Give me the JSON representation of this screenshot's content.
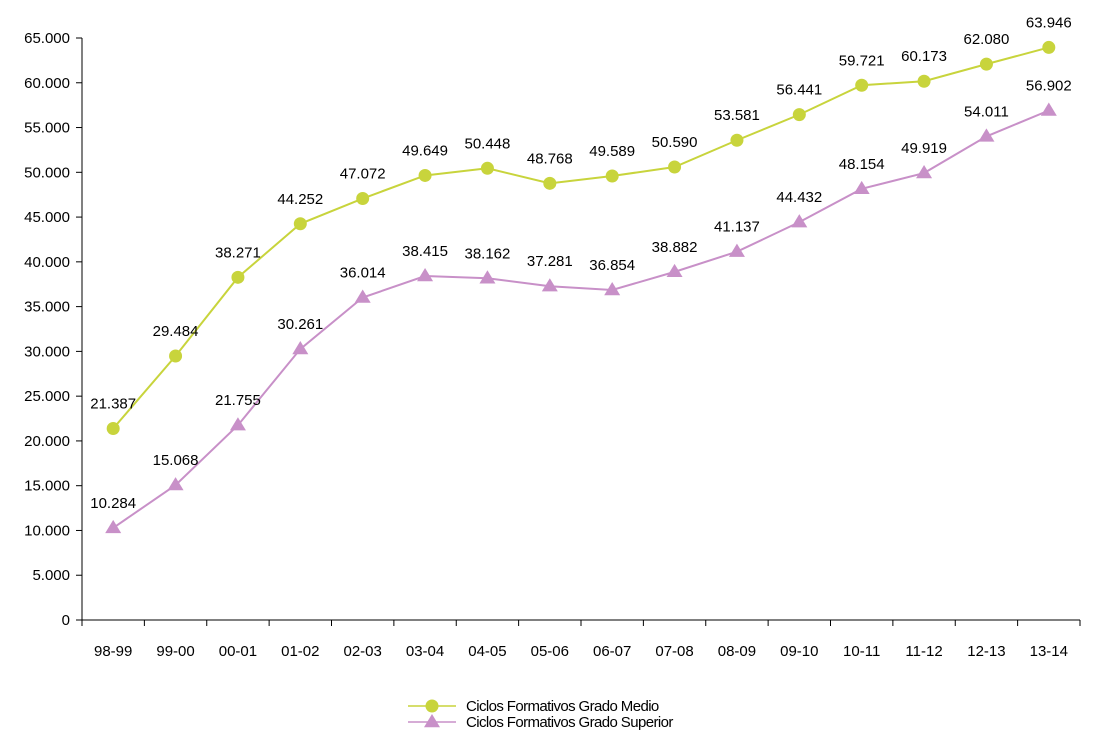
{
  "chart_data": {
    "type": "line",
    "title": "",
    "xlabel": "",
    "ylabel": "",
    "categories": [
      "98-99",
      "99-00",
      "00-01",
      "01-02",
      "02-03",
      "03-04",
      "04-05",
      "05-06",
      "06-07",
      "07-08",
      "08-09",
      "09-10",
      "10-11",
      "11-12",
      "12-13",
      "13-14"
    ],
    "ylim": [
      0,
      65000
    ],
    "yticks": [
      0,
      5000,
      10000,
      15000,
      20000,
      25000,
      30000,
      35000,
      40000,
      45000,
      50000,
      55000,
      60000,
      65000
    ],
    "ytick_labels": [
      "0",
      "5.000",
      "10.000",
      "15.000",
      "20.000",
      "25.000",
      "30.000",
      "35.000",
      "40.000",
      "45.000",
      "50.000",
      "55.000",
      "60.000",
      "65.000"
    ],
    "grid": false,
    "legend_position": "bottom",
    "series": [
      {
        "name": "Ciclos Formativos Grado Medio",
        "marker": "circle",
        "color": "#c8d43c",
        "values": [
          21387,
          29484,
          38271,
          44252,
          47072,
          49649,
          50448,
          48768,
          49589,
          50590,
          53581,
          56441,
          59721,
          60173,
          62080,
          63946
        ],
        "labels": [
          "21.387",
          "29.484",
          "38.271",
          "44.252",
          "47.072",
          "49.649",
          "50.448",
          "48.768",
          "49.589",
          "50.590",
          "53.581",
          "56.441",
          "59.721",
          "60.173",
          "62.080",
          "63.946"
        ]
      },
      {
        "name": "Ciclos Formativos Grado Superior",
        "marker": "triangle",
        "color": "#c890c8",
        "values": [
          10284,
          15068,
          21755,
          30261,
          36014,
          38415,
          38162,
          37281,
          36854,
          38882,
          41137,
          44432,
          48154,
          49919,
          54011,
          56902
        ],
        "labels": [
          "10.284",
          "15.068",
          "21.755",
          "30.261",
          "36.014",
          "38.415",
          "38.162",
          "37.281",
          "36.854",
          "38.882",
          "41.137",
          "44.432",
          "48.154",
          "49.919",
          "54.011",
          "56.902"
        ]
      }
    ]
  }
}
